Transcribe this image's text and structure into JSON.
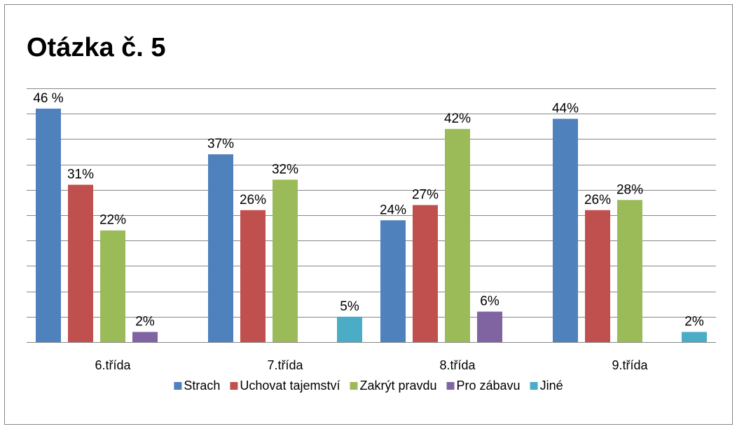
{
  "chart_data": {
    "type": "bar",
    "title": "Otázka č. 5",
    "categories": [
      "6.třída",
      "7.třída",
      "8.třída",
      "9.třída"
    ],
    "series": [
      {
        "name": "Strach",
        "color": "#4f81bd",
        "values": [
          46,
          37,
          24,
          44
        ],
        "value_labels": [
          "46 %",
          "37%",
          "24%",
          "44%"
        ]
      },
      {
        "name": "Uchovat tajemství",
        "color": "#c0504d",
        "values": [
          31,
          26,
          27,
          26
        ],
        "value_labels": [
          "31%",
          "26%",
          "27%",
          "26%"
        ]
      },
      {
        "name": "Zakrýt pravdu",
        "color": "#9bbb59",
        "values": [
          22,
          32,
          42,
          28
        ],
        "value_labels": [
          "22%",
          "32%",
          "42%",
          "28%"
        ]
      },
      {
        "name": "Pro zábavu",
        "color": "#8064a2",
        "values": [
          2,
          null,
          6,
          null
        ],
        "value_labels": [
          "2%",
          null,
          "6%",
          null
        ]
      },
      {
        "name": "Jiné",
        "color": "#4bacc6",
        "values": [
          null,
          5,
          null,
          2
        ],
        "value_labels": [
          null,
          "5%",
          null,
          "2%"
        ]
      }
    ],
    "ylim": [
      0,
      50
    ],
    "yticks": [
      0,
      5,
      10,
      15,
      20,
      25,
      30,
      35,
      40,
      45,
      50
    ],
    "grid": true,
    "legend": "bottom"
  }
}
